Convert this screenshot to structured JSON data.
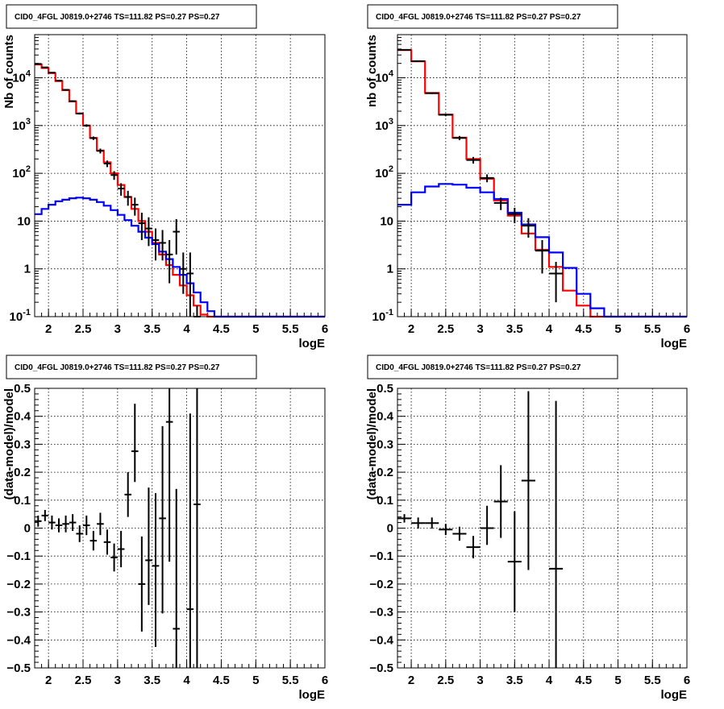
{
  "chart_data": [
    {
      "type": "step-line",
      "title": "CID0_4FGL J0819.0+2746 TS=111.82 PS=0.27 PS=0.27",
      "xlabel": "logE",
      "ylabel": "Nb of counts",
      "log_y": true,
      "xlim": [
        1.8,
        6.0
      ],
      "ylim": [
        0.1,
        80000
      ],
      "grid": true,
      "x_ticks": [
        "2",
        "2.5",
        "3",
        "3.5",
        "4",
        "4.5",
        "5",
        "5.5",
        "6"
      ],
      "y_ticks": [
        "10^-1",
        "1",
        "10",
        "10^2",
        "10^3",
        "10^4"
      ],
      "bin_edges": [
        1.8,
        1.9,
        2.0,
        2.1,
        2.2,
        2.3,
        2.4,
        2.5,
        2.6,
        2.7,
        2.8,
        2.9,
        3.0,
        3.1,
        3.2,
        3.3,
        3.4,
        3.5,
        3.6,
        3.7,
        3.8,
        3.9,
        4.0,
        4.1,
        4.2,
        4.3,
        4.4,
        4.5,
        4.6,
        4.7,
        4.8,
        4.9,
        5.0,
        5.1,
        5.2,
        5.3,
        5.4,
        5.5,
        5.6,
        5.7,
        5.8,
        5.9,
        6.0
      ],
      "series": [
        {
          "color": "#ff0000",
          "values": [
            19000,
            16000,
            12500,
            8500,
            5500,
            3200,
            1800,
            1000,
            550,
            300,
            170,
            100,
            57,
            32,
            18,
            10,
            6,
            3.5,
            2,
            1.2,
            0.75,
            0.45,
            0.28,
            0.17,
            0.11,
            0.1,
            0.1,
            0.1,
            0.1,
            0.1,
            0.1,
            0.1,
            0.1,
            0.1,
            0.1,
            0.1,
            0.1,
            0.1,
            0.1,
            0.1,
            0.1,
            0.1
          ]
        },
        {
          "color": "#0000ff",
          "values": [
            14,
            18,
            22,
            26,
            28,
            30,
            31,
            30,
            28,
            25,
            21,
            17,
            13.5,
            10.5,
            8,
            6,
            4.5,
            3.3,
            2.3,
            1.6,
            1.1,
            0.75,
            0.5,
            0.32,
            0.2,
            0.13,
            0.1,
            0.1,
            0.1,
            0.1,
            0.1,
            0.1,
            0.1,
            0.1,
            0.1,
            0.1,
            0.1,
            0.1,
            0.1,
            0.1,
            0.1,
            0.1
          ]
        }
      ],
      "points": {
        "color": "#000000",
        "x": [
          1.85,
          1.95,
          2.05,
          2.15,
          2.25,
          2.35,
          2.45,
          2.55,
          2.65,
          2.75,
          2.85,
          2.95,
          3.05,
          3.15,
          3.25,
          3.35,
          3.45,
          3.55,
          3.65,
          3.75,
          3.85,
          3.95,
          4.05,
          4.15
        ],
        "y": [
          19500,
          16500,
          12800,
          8700,
          5600,
          3250,
          1780,
          1000,
          545,
          295,
          160,
          92,
          48,
          32,
          22,
          9,
          7,
          4,
          3.5,
          2,
          6,
          1,
          0.8,
          0.07
        ],
        "err_lo": [
          300,
          260,
          220,
          180,
          140,
          110,
          80,
          60,
          45,
          34,
          25,
          19,
          14,
          11,
          9,
          5,
          4,
          2.5,
          2,
          1.5,
          4,
          0.7,
          0.7,
          0.05
        ],
        "err_hi": [
          300,
          260,
          220,
          180,
          140,
          110,
          80,
          60,
          45,
          34,
          25,
          19,
          14,
          11,
          9,
          6,
          5,
          3,
          3,
          2,
          5,
          1.2,
          1.4,
          0.1
        ]
      }
    },
    {
      "type": "step-line",
      "title": "CID0_4FGL J0819.0+2746 TS=111.82 PS=0.27 PS=0.27",
      "xlabel": "logE",
      "ylabel": "nb of counts",
      "log_y": true,
      "xlim": [
        1.8,
        6.0
      ],
      "ylim": [
        0.1,
        80000
      ],
      "grid": true,
      "x_ticks": [
        "2",
        "2.5",
        "3",
        "3.5",
        "4",
        "4.5",
        "5",
        "5.5",
        "6"
      ],
      "y_ticks": [
        "10^-1",
        "1",
        "10",
        "10^2",
        "10^3",
        "10^4"
      ],
      "bin_edges": [
        1.8,
        2.0,
        2.2,
        2.4,
        2.6,
        2.8,
        3.0,
        3.2,
        3.4,
        3.6,
        3.8,
        4.0,
        4.2,
        4.4,
        4.6,
        4.8,
        5.0,
        5.2,
        5.4,
        5.6,
        5.8,
        6.0
      ],
      "series": [
        {
          "color": "#ff0000",
          "values": [
            38000,
            22000,
            4800,
            1700,
            560,
            200,
            77,
            27,
            13,
            5.5,
            2.5,
            1.1,
            0.35,
            0.17,
            0.1,
            0.1,
            0.1,
            0.1,
            0.1,
            0.1,
            0.1
          ]
        },
        {
          "color": "#0000ff",
          "values": [
            22,
            40,
            53,
            60,
            58,
            50,
            40,
            29,
            15,
            8.5,
            4.6,
            2.2,
            1.05,
            0.3,
            0.15,
            0.1,
            0.1,
            0.1,
            0.1,
            0.1,
            0.1
          ]
        }
      ],
      "points": {
        "color": "#000000",
        "x": [
          1.9,
          2.1,
          2.3,
          2.5,
          2.7,
          2.9,
          3.1,
          3.3,
          3.5,
          3.7,
          3.9,
          4.1
        ],
        "y": [
          38500,
          22300,
          4750,
          1680,
          550,
          190,
          80,
          24,
          14,
          8,
          2.4,
          0.8
        ],
        "err_lo": [
          500,
          380,
          180,
          100,
          55,
          30,
          15,
          7,
          5,
          3.5,
          1.6,
          0.6
        ],
        "err_hi": [
          500,
          380,
          180,
          100,
          55,
          30,
          15,
          7,
          5,
          3.5,
          1.6,
          0.6
        ]
      }
    },
    {
      "type": "scatter",
      "title": "CID0_4FGL J0819.0+2746 TS=111.82 PS=0.27 PS=0.27",
      "xlabel": "logE",
      "ylabel": "(data-model)/model",
      "log_y": false,
      "xlim": [
        1.8,
        6.0
      ],
      "ylim": [
        -0.5,
        0.5
      ],
      "grid": true,
      "x_ticks": [
        "2",
        "2.5",
        "3",
        "3.5",
        "4",
        "4.5",
        "5",
        "5.5",
        "6"
      ],
      "y_ticks": [
        "−0.5",
        "−0.4",
        "−0.3",
        "−0.2",
        "−0.1",
        "0",
        "0.1",
        "0.2",
        "0.3",
        "0.4",
        "0.5"
      ],
      "points": {
        "color": "#000000",
        "xerr": 0.05,
        "x": [
          1.85,
          1.95,
          2.05,
          2.15,
          2.25,
          2.35,
          2.45,
          2.55,
          2.65,
          2.75,
          2.85,
          2.95,
          3.05,
          3.15,
          3.25,
          3.35,
          3.45,
          3.55,
          3.65,
          3.75,
          3.85,
          4.05,
          4.15
        ],
        "y": [
          0.025,
          0.045,
          0.02,
          0.01,
          0.015,
          0.02,
          -0.02,
          0.01,
          -0.045,
          0.015,
          -0.05,
          -0.105,
          -0.075,
          0.12,
          0.275,
          -0.2,
          -0.115,
          -0.135,
          0.035,
          0.38,
          -0.36,
          -0.29,
          0.085
        ],
        "err_lo": [
          0.02,
          0.02,
          0.025,
          0.025,
          0.03,
          0.03,
          0.03,
          0.035,
          0.035,
          0.04,
          0.045,
          0.05,
          0.065,
          0.08,
          0.11,
          0.17,
          0.16,
          0.29,
          0.34,
          0.5,
          0.5,
          0.5,
          0.6
        ],
        "err_hi": [
          0.02,
          0.02,
          0.025,
          0.025,
          0.03,
          0.03,
          0.03,
          0.035,
          0.035,
          0.04,
          0.045,
          0.05,
          0.065,
          0.08,
          0.17,
          0.17,
          0.26,
          0.26,
          0.33,
          0.5,
          0.5,
          0.7,
          0.6
        ]
      }
    },
    {
      "type": "scatter",
      "title": "CID0_4FGL J0819.0+2746 TS=111.82 PS=0.27 PS=0.27",
      "xlabel": "logE",
      "ylabel": "(data-model)/model",
      "log_y": false,
      "xlim": [
        1.8,
        6.0
      ],
      "ylim": [
        -0.5,
        0.5
      ],
      "grid": true,
      "x_ticks": [
        "2",
        "2.5",
        "3",
        "3.5",
        "4",
        "4.5",
        "5",
        "5.5",
        "6"
      ],
      "y_ticks": [
        "−0.5",
        "−0.4",
        "−0.3",
        "−0.2",
        "−0.1",
        "0",
        "0.1",
        "0.2",
        "0.3",
        "0.4",
        "0.5"
      ],
      "points": {
        "color": "#000000",
        "xerr": 0.1,
        "x": [
          1.9,
          2.1,
          2.3,
          2.5,
          2.7,
          2.9,
          3.1,
          3.3,
          3.5,
          3.7,
          4.1
        ],
        "y": [
          0.035,
          0.018,
          0.018,
          -0.005,
          -0.02,
          -0.068,
          0.0,
          0.095,
          -0.12,
          0.17,
          -0.145
        ],
        "err_lo": [
          0.015,
          0.02,
          0.02,
          0.02,
          0.025,
          0.04,
          0.06,
          0.13,
          0.18,
          0.32,
          0.5
        ],
        "err_hi": [
          0.015,
          0.02,
          0.02,
          0.02,
          0.025,
          0.04,
          0.08,
          0.13,
          0.18,
          0.32,
          0.6
        ]
      }
    }
  ]
}
